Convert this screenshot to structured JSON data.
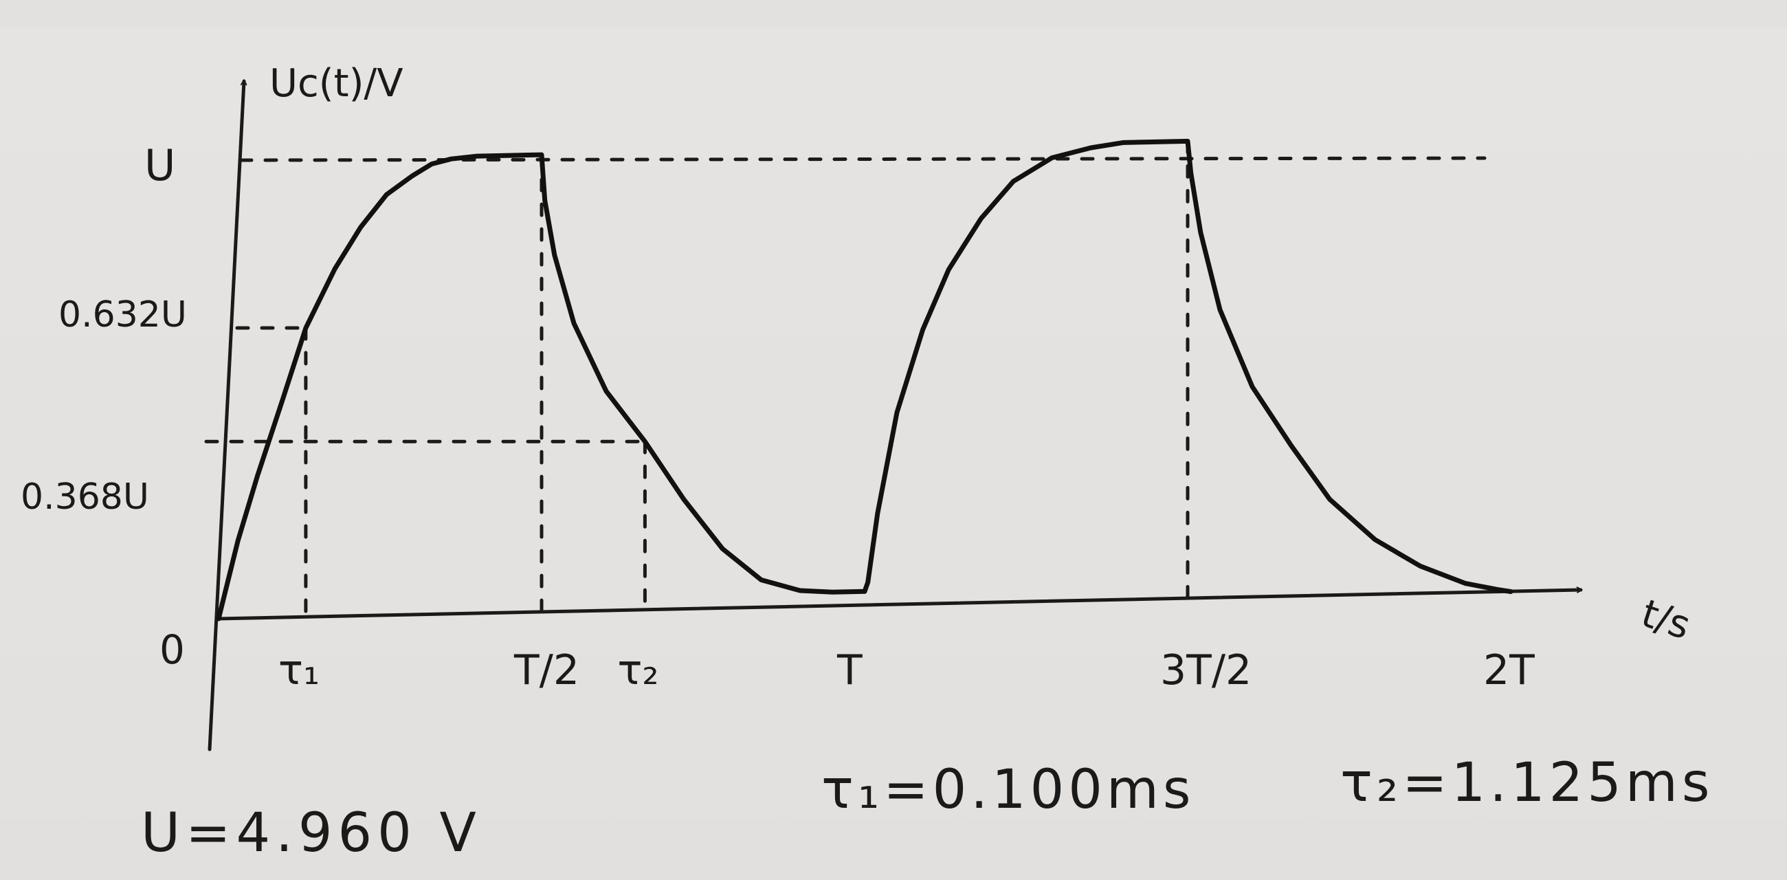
{
  "chart_data": {
    "type": "line",
    "ylabel": "Uc(t)/V",
    "xlabel": "t/s",
    "origin_label": "0",
    "y_ticks": [
      {
        "label": "U",
        "value": 1.0
      },
      {
        "label": "0.632U",
        "value": 0.632
      },
      {
        "label": "0.368U",
        "value": 0.368
      }
    ],
    "x_ticks": [
      {
        "label": "τ₁",
        "value": 0.135
      },
      {
        "label": "T/2",
        "value": 0.5
      },
      {
        "label": "τ₂",
        "value": 0.66
      },
      {
        "label": "T",
        "value": 1.0
      },
      {
        "label": "3T/2",
        "value": 1.5
      },
      {
        "label": "2T",
        "value": 2.0
      }
    ],
    "x_unit": "T",
    "y_unit": "U",
    "xlim": [
      0,
      2.0
    ],
    "ylim": [
      0,
      1.0
    ],
    "series": [
      {
        "x": [
          0,
          0.03,
          0.06,
          0.1,
          0.135,
          0.18,
          0.22,
          0.26,
          0.3,
          0.33,
          0.36,
          0.4,
          0.45,
          0.5,
          0.505,
          0.52,
          0.55,
          0.6,
          0.66,
          0.72,
          0.78,
          0.84,
          0.9,
          0.95,
          1.0,
          1.005,
          1.02,
          1.05,
          1.09,
          1.13,
          1.18,
          1.23,
          1.29,
          1.35,
          1.4,
          1.45,
          1.5,
          1.505,
          1.52,
          1.55,
          1.6,
          1.66,
          1.72,
          1.79,
          1.86,
          1.93,
          1.98,
          2.0
        ],
        "y": [
          0,
          0.17,
          0.31,
          0.48,
          0.632,
          0.76,
          0.85,
          0.92,
          0.96,
          0.985,
          0.995,
          1.0,
          1.0,
          1.0,
          0.9,
          0.78,
          0.63,
          0.48,
          0.368,
          0.24,
          0.13,
          0.06,
          0.035,
          0.03,
          0.03,
          0.05,
          0.2,
          0.42,
          0.6,
          0.73,
          0.84,
          0.92,
          0.97,
          0.99,
          1.0,
          1.0,
          1.0,
          0.93,
          0.8,
          0.63,
          0.46,
          0.33,
          0.21,
          0.12,
          0.06,
          0.02,
          0.005,
          0.0
        ]
      }
    ],
    "reference_lines": {
      "top_line_at": "U",
      "mid_lines": [
        "0.632U",
        "0.368U"
      ],
      "verticals": [
        "τ₁",
        "T/2",
        "τ₂",
        "3T/2"
      ]
    }
  },
  "notes": {
    "u_value": "U=4.960 V",
    "tau1_value": "τ₁=0.100ms",
    "tau2_value": "τ₂=1.125ms"
  }
}
